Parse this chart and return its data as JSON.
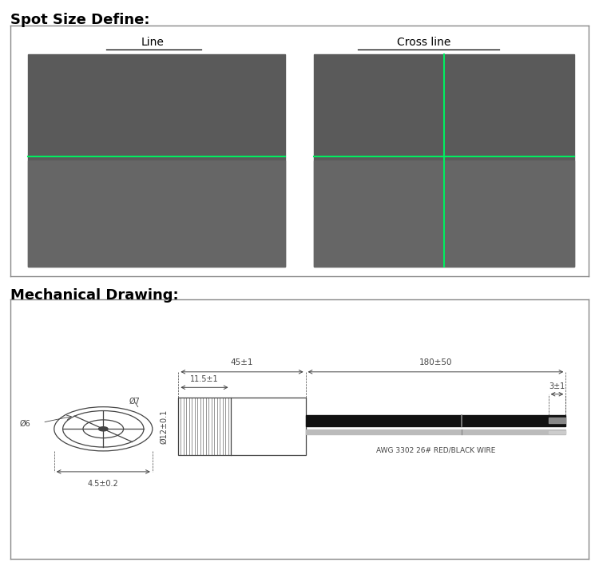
{
  "title_spot": "Spot Size Define:",
  "title_mech": "Mechanical Drawing:",
  "label_line": "Line",
  "label_cross": "Cross line",
  "laser_color": "#00ee60",
  "bg_photo_top": "#5a5a5a",
  "bg_photo_bot": "#666666",
  "border_color": "#888888",
  "text_color": "#000000",
  "dim_color": "#444444",
  "wire_black": "#111111",
  "wire_gray": "#bbbbbb",
  "annotations": {
    "dim1": "45±1",
    "dim2": "180±50",
    "dim3": "11.5±1",
    "dim4": "3±1",
    "dim5": "4.5±0.2",
    "dim6": "Ø12±0.1",
    "dim7": "Ø7",
    "dim8": "Ø6",
    "wire_label": "AWG 3302 26# RED/BLACK WIRE"
  }
}
